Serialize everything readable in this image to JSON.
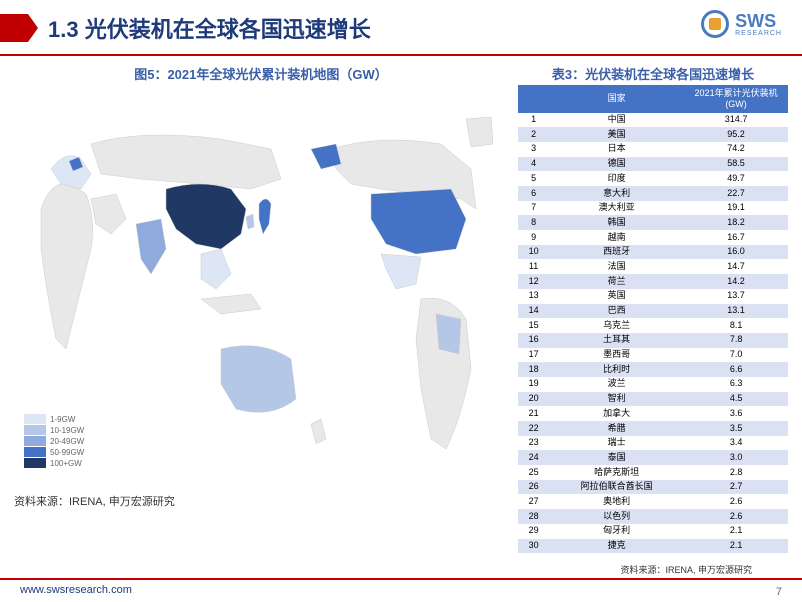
{
  "header": {
    "section_number": "1.3",
    "title": "1.3 光伏装机在全球各国迅速增长",
    "logo_text": "SWS",
    "logo_sub": "RESEARCH"
  },
  "figure": {
    "title": "图5：2021年全球光伏累计装机地图（GW）",
    "legend": [
      {
        "label": "1-9GW",
        "color": "#dce6f4"
      },
      {
        "label": "10-19GW",
        "color": "#b4c7e7"
      },
      {
        "label": "20-49GW",
        "color": "#8faadc"
      },
      {
        "label": "50-99GW",
        "color": "#4472c4"
      },
      {
        "label": "100+GW",
        "color": "#1f3864"
      }
    ],
    "map_colors": {
      "base": "#e8e8e8",
      "outline": "#cccccc",
      "china": "#1f3864",
      "usa": "#4472c4",
      "japan": "#4472c4",
      "germany": "#4472c4",
      "india": "#8faadc",
      "australia": "#b4c7e7",
      "europe_low": "#dce6f4"
    }
  },
  "table": {
    "title": "表3：光伏装机在全球各国迅速增长",
    "header_bg": "#4472c4",
    "row_even_bg": "#d9e1f2",
    "row_odd_bg": "#ffffff",
    "columns": [
      "",
      "国家",
      "2021年累计光伏装机(GW)"
    ],
    "rows": [
      [
        "1",
        "中国",
        "314.7"
      ],
      [
        "2",
        "美国",
        "95.2"
      ],
      [
        "3",
        "日本",
        "74.2"
      ],
      [
        "4",
        "德国",
        "58.5"
      ],
      [
        "5",
        "印度",
        "49.7"
      ],
      [
        "6",
        "意大利",
        "22.7"
      ],
      [
        "7",
        "澳大利亚",
        "19.1"
      ],
      [
        "8",
        "韩国",
        "18.2"
      ],
      [
        "9",
        "越南",
        "16.7"
      ],
      [
        "10",
        "西班牙",
        "16.0"
      ],
      [
        "11",
        "法国",
        "14.7"
      ],
      [
        "12",
        "荷兰",
        "14.2"
      ],
      [
        "13",
        "英国",
        "13.7"
      ],
      [
        "14",
        "巴西",
        "13.1"
      ],
      [
        "15",
        "乌克兰",
        "8.1"
      ],
      [
        "16",
        "土耳其",
        "7.8"
      ],
      [
        "17",
        "墨西哥",
        "7.0"
      ],
      [
        "18",
        "比利时",
        "6.6"
      ],
      [
        "19",
        "波兰",
        "6.3"
      ],
      [
        "20",
        "智利",
        "4.5"
      ],
      [
        "21",
        "加拿大",
        "3.6"
      ],
      [
        "22",
        "希腊",
        "3.5"
      ],
      [
        "23",
        "瑞士",
        "3.4"
      ],
      [
        "24",
        "泰国",
        "3.0"
      ],
      [
        "25",
        "哈萨克斯坦",
        "2.8"
      ],
      [
        "26",
        "阿拉伯联合酋长国",
        "2.7"
      ],
      [
        "27",
        "奥地利",
        "2.6"
      ],
      [
        "28",
        "以色列",
        "2.6"
      ],
      [
        "29",
        "匈牙利",
        "2.1"
      ],
      [
        "30",
        "捷克",
        "2.1"
      ]
    ]
  },
  "source_left": "资料来源：IRENA, 申万宏源研究",
  "source_right": "资料来源：IRENA, 申万宏源研究",
  "footer_url": "www.swsresearch.com",
  "page_number": "7",
  "colors": {
    "accent_red": "#c00000",
    "title_blue": "#1f3a7a",
    "subtitle_blue": "#3a5fa8"
  }
}
